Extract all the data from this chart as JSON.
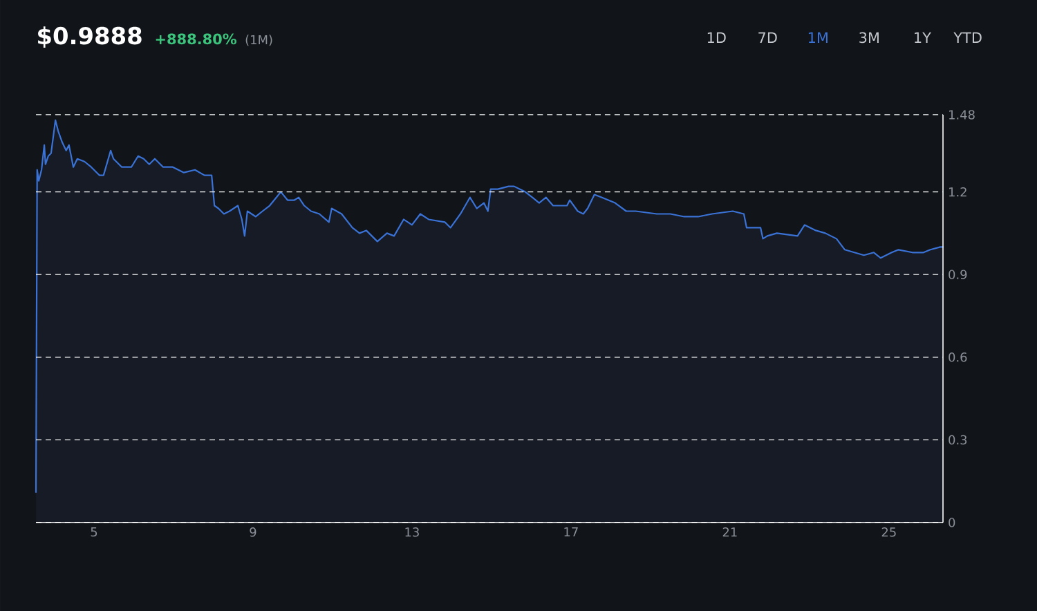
{
  "chart_data": {
    "type": "area",
    "title": "$0.9888",
    "subtitle": "+888.80%",
    "annotations": [
      "(1M)",
      "1D",
      "7D",
      "1M",
      "3M",
      "1Y",
      "YTD"
    ],
    "x": [
      3.54,
      3.57,
      3.61,
      3.68,
      3.75,
      3.78,
      3.85,
      3.92,
      4.03,
      4.1,
      4.2,
      4.3,
      4.37,
      4.48,
      4.58,
      4.76,
      4.93,
      5.14,
      5.24,
      5.42,
      5.49,
      5.7,
      5.94,
      6.11,
      6.25,
      6.39,
      6.53,
      6.74,
      6.98,
      7.26,
      7.54,
      7.78,
      7.96,
      8.03,
      8.13,
      8.27,
      8.41,
      8.62,
      8.72,
      8.79,
      8.86,
      9.07,
      9.24,
      9.42,
      9.59,
      9.7,
      9.87,
      10.04,
      10.15,
      10.29,
      10.46,
      10.67,
      10.91,
      10.98,
      11.23,
      11.5,
      11.68,
      11.85,
      12.13,
      12.37,
      12.55,
      12.79,
      13.0,
      13.21,
      13.42,
      13.83,
      13.97,
      14.22,
      14.46,
      14.63,
      14.81,
      14.91,
      14.98,
      15.16,
      15.43,
      15.57,
      15.85,
      16.03,
      16.2,
      16.37,
      16.55,
      16.72,
      16.9,
      16.97,
      17.17,
      17.31,
      17.42,
      17.59,
      17.77,
      17.94,
      18.11,
      18.39,
      18.63,
      19.16,
      19.5,
      19.85,
      20.2,
      20.55,
      21.07,
      21.35,
      21.42,
      21.59,
      21.77,
      21.83,
      21.94,
      22.18,
      22.7,
      22.88,
      23.16,
      23.4,
      23.68,
      23.89,
      24.13,
      24.37,
      24.62,
      24.79,
      25.07,
      25.24,
      25.59,
      25.87,
      26.04,
      26.29,
      26.36
    ],
    "series": [
      {
        "color": "#3a72d6",
        "values": [
          0.11,
          1.28,
          1.24,
          1.28,
          1.37,
          1.3,
          1.33,
          1.34,
          1.46,
          1.42,
          1.38,
          1.35,
          1.37,
          1.29,
          1.32,
          1.31,
          1.29,
          1.26,
          1.26,
          1.35,
          1.32,
          1.29,
          1.29,
          1.33,
          1.32,
          1.3,
          1.32,
          1.29,
          1.29,
          1.27,
          1.28,
          1.26,
          1.26,
          1.15,
          1.14,
          1.12,
          1.13,
          1.15,
          1.1,
          1.04,
          1.13,
          1.11,
          1.13,
          1.15,
          1.18,
          1.2,
          1.17,
          1.17,
          1.18,
          1.15,
          1.13,
          1.12,
          1.09,
          1.14,
          1.12,
          1.07,
          1.05,
          1.06,
          1.02,
          1.05,
          1.04,
          1.1,
          1.08,
          1.12,
          1.1,
          1.09,
          1.07,
          1.12,
          1.18,
          1.14,
          1.16,
          1.13,
          1.21,
          1.21,
          1.22,
          1.22,
          1.2,
          1.18,
          1.16,
          1.18,
          1.15,
          1.15,
          1.15,
          1.17,
          1.13,
          1.12,
          1.14,
          1.19,
          1.18,
          1.17,
          1.16,
          1.13,
          1.13,
          1.12,
          1.12,
          1.11,
          1.11,
          1.12,
          1.13,
          1.12,
          1.07,
          1.07,
          1.07,
          1.03,
          1.04,
          1.05,
          1.04,
          1.08,
          1.06,
          1.05,
          1.03,
          0.99,
          0.98,
          0.97,
          0.98,
          0.96,
          0.98,
          0.99,
          0.98,
          0.98,
          0.99,
          1.0,
          1.0
        ]
      }
    ],
    "xlim": [
      3.54,
      26.36
    ],
    "xticks": [
      5,
      9,
      13,
      17,
      21,
      25
    ],
    "ylim": [
      0,
      1.48
    ],
    "yticks": [
      0,
      0.3,
      0.6,
      0.9,
      1.2,
      1.48
    ],
    "grid": "y"
  }
}
